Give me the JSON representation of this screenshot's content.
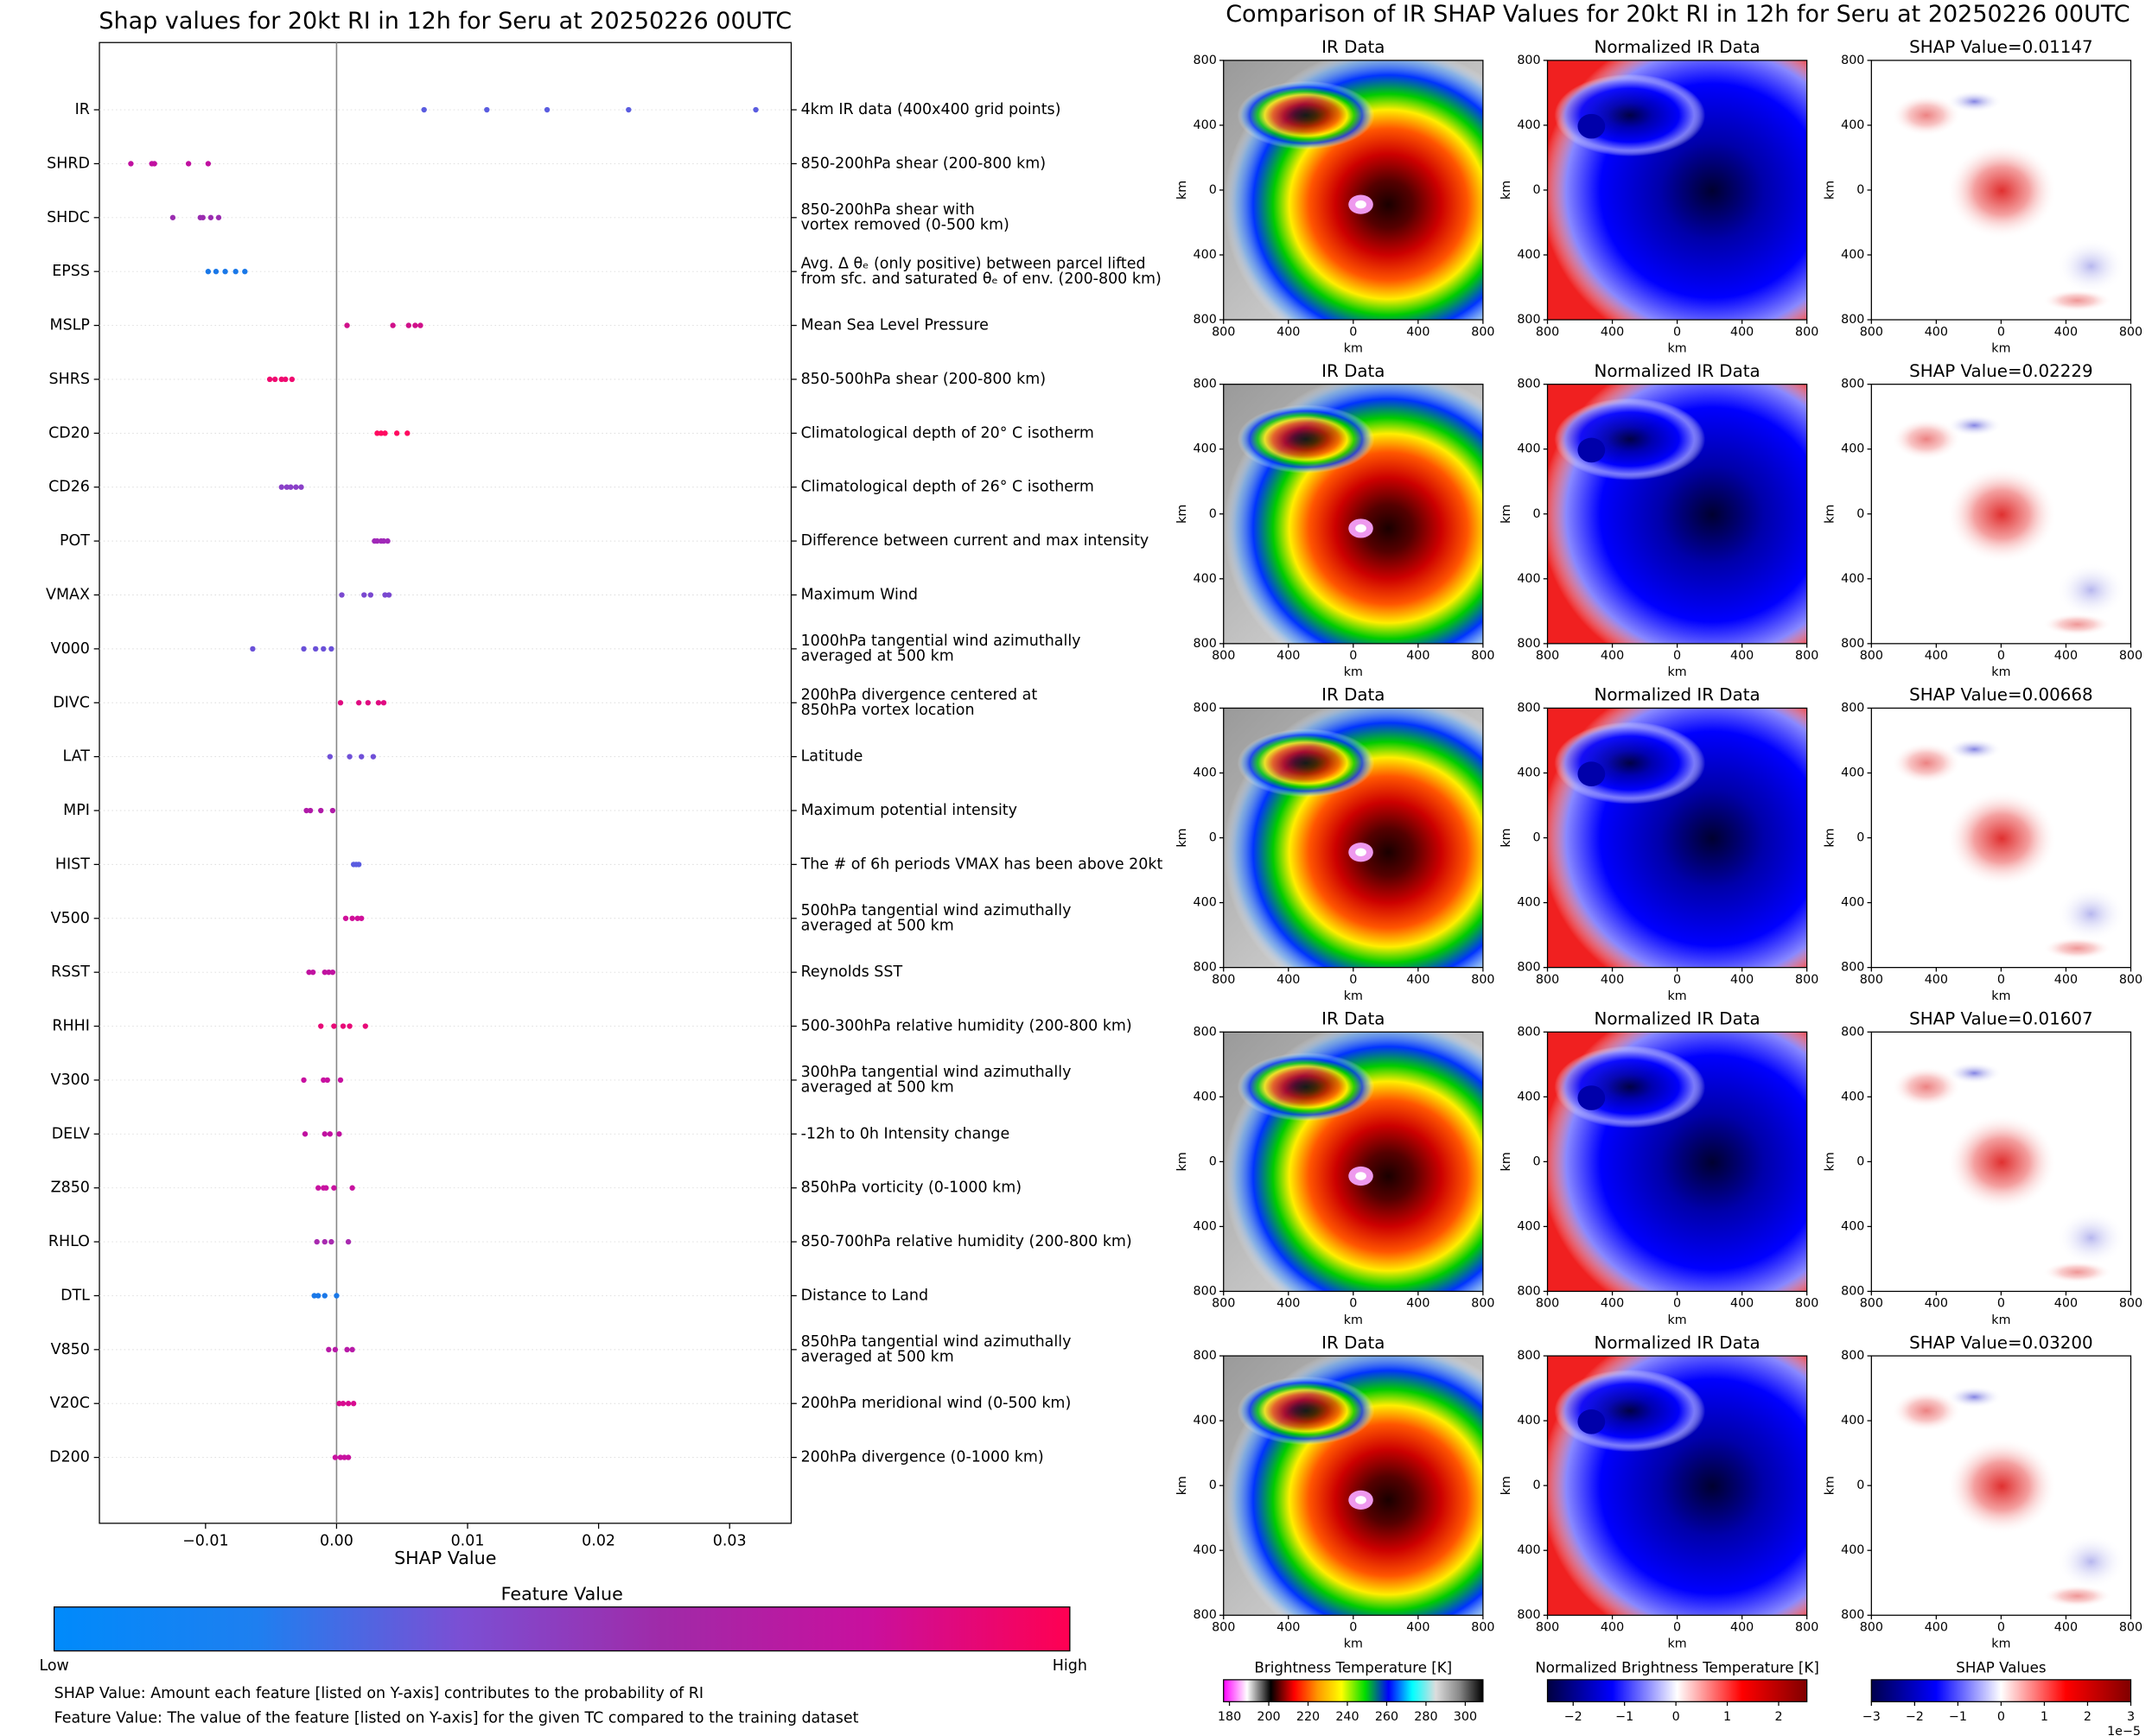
{
  "chart_data": [
    {
      "type": "scatter",
      "title": "Shap values for 20kt RI in 12h for Seru at 20250226 00UTC",
      "x_label": "SHAP Value",
      "xlim": [
        -0.0181,
        0.0347
      ],
      "xticks": [
        {
          "value": -0.01,
          "label": "−0.01"
        },
        {
          "value": 0,
          "label": "0.00"
        },
        0.01,
        0.02,
        0.03
      ],
      "series": [
        {
          "name": "IR",
          "description": [
            "4km IR data (400x400 grid points)"
          ],
          "color": "#5a5ce0",
          "values": [
            0.00668,
            0.01147,
            0.01607,
            0.02229,
            0.032
          ]
        },
        {
          "name": "SHRD",
          "description": [
            "850-200hPa shear (200-800 km)"
          ],
          "color": "#c010a0",
          "values": [
            -0.0157,
            -0.0141,
            -0.0139,
            -0.0113,
            -0.0098
          ]
        },
        {
          "name": "SHDC",
          "description": [
            "850-200hPa shear with",
            "vortex removed (0-500 km)"
          ],
          "color": "#9a2cb0",
          "values": [
            -0.0125,
            -0.0104,
            -0.0102,
            -0.0096,
            -0.009
          ]
        },
        {
          "name": "EPSS",
          "description": [
            "Avg. Δ θₑ (only positive) between parcel lifted",
            "from sfc. and saturated θₑ of env. (200-800 km)"
          ],
          "color": "#1a78e8",
          "values": [
            -0.0098,
            -0.0092,
            -0.0085,
            -0.0077,
            -0.007
          ]
        },
        {
          "name": "MSLP",
          "description": [
            "Mean Sea Level Pressure"
          ],
          "color": "#d0108a",
          "values": [
            0.0008,
            0.0043,
            0.0055,
            0.006,
            0.0064
          ]
        },
        {
          "name": "SHRS",
          "description": [
            "850-500hPa shear (200-800 km)"
          ],
          "color": "#f00a70",
          "values": [
            -0.0051,
            -0.0047,
            -0.0042,
            -0.0039,
            -0.0034
          ]
        },
        {
          "name": "CD20",
          "description": [
            "Climatological depth of 20° C isotherm"
          ],
          "color": "#ff0a60",
          "values": [
            0.0031,
            0.0034,
            0.0037,
            0.0046,
            0.0054
          ]
        },
        {
          "name": "CD26",
          "description": [
            "Climatological depth of 26° C isotherm"
          ],
          "color": "#8a40c8",
          "values": [
            -0.0042,
            -0.0038,
            -0.0035,
            -0.0031,
            -0.0027
          ]
        },
        {
          "name": "POT",
          "description": [
            "Difference between current and max intensity"
          ],
          "color": "#a028b8",
          "values": [
            0.0029,
            0.0031,
            0.0034,
            0.0036,
            0.0039
          ]
        },
        {
          "name": "VMAX",
          "description": [
            "Maximum Wind"
          ],
          "color": "#7a48d0",
          "values": [
            0.0004,
            0.0021,
            0.0026,
            0.0037,
            0.004
          ]
        },
        {
          "name": "V000",
          "description": [
            "1000hPa tangential wind azimuthally",
            "averaged at 500 km"
          ],
          "color": "#6a50d8",
          "values": [
            -0.0064,
            -0.0025,
            -0.0016,
            -0.001,
            -0.0004
          ]
        },
        {
          "name": "DIVC",
          "description": [
            "200hPa divergence centered at",
            "850hPa vortex location"
          ],
          "color": "#e00a80",
          "values": [
            0.0003,
            0.0017,
            0.0024,
            0.0032,
            0.0036
          ]
        },
        {
          "name": "LAT",
          "description": [
            "Latitude"
          ],
          "color": "#7050d8",
          "values": [
            -0.0005,
            0.001,
            0.0019,
            0.0028
          ]
        },
        {
          "name": "MPI",
          "description": [
            "Maximum potential intensity"
          ],
          "color": "#b01aa8",
          "values": [
            -0.0023,
            -0.002,
            -0.0012,
            -0.0003
          ]
        },
        {
          "name": "HIST",
          "description": [
            "The # of 6h periods VMAX has been above 20kt"
          ],
          "color": "#5a5ce0",
          "values": [
            0.0013,
            0.0015,
            0.0017
          ]
        },
        {
          "name": "V500",
          "description": [
            "500hPa tangential wind azimuthally",
            "averaged at 500 km"
          ],
          "color": "#d0109a",
          "values": [
            0.0007,
            0.0012,
            0.0016,
            0.0019
          ]
        },
        {
          "name": "RSST",
          "description": [
            "Reynolds SST"
          ],
          "color": "#c012a0",
          "values": [
            -0.0021,
            -0.0018,
            -0.0009,
            -0.0006,
            -0.0003
          ]
        },
        {
          "name": "RHHI",
          "description": [
            "500-300hPa relative humidity (200-800 km)"
          ],
          "color": "#e80a78",
          "values": [
            -0.0012,
            -0.0002,
            0.0005,
            0.001,
            0.0022
          ]
        },
        {
          "name": "V300",
          "description": [
            "300hPa tangential wind azimuthally",
            "averaged at 500 km"
          ],
          "color": "#c810a0",
          "values": [
            -0.0025,
            -0.001,
            -0.0007,
            0.0003
          ]
        },
        {
          "name": "DELV",
          "description": [
            "-12h to 0h Intensity change"
          ],
          "color": "#c010a0",
          "values": [
            -0.0024,
            -0.0009,
            -0.0005,
            0.0002
          ]
        },
        {
          "name": "Z850",
          "description": [
            "850hPa vorticity (0-1000 km)"
          ],
          "color": "#c812a0",
          "values": [
            -0.0014,
            -0.001,
            -0.0008,
            -0.0002,
            0.0012
          ]
        },
        {
          "name": "RHLO",
          "description": [
            "850-700hPa relative humidity (200-800 km)"
          ],
          "color": "#a82ab0",
          "values": [
            -0.0015,
            -0.0009,
            -0.0004,
            0.0009
          ]
        },
        {
          "name": "DTL",
          "description": [
            "Distance to Land"
          ],
          "color": "#1a78e8",
          "values": [
            -0.0017,
            -0.0014,
            -0.0009,
            0.0
          ]
        },
        {
          "name": "V850",
          "description": [
            "850hPa tangential wind azimuthally",
            "averaged at 500 km"
          ],
          "color": "#b81aa8",
          "values": [
            -0.0006,
            -0.0001,
            0.0008,
            0.0012
          ]
        },
        {
          "name": "V20C",
          "description": [
            "200hPa meridional wind (0-500 km)"
          ],
          "color": "#d80c90",
          "values": [
            0.0002,
            0.0005,
            0.0009,
            0.0013
          ]
        },
        {
          "name": "D200",
          "description": [
            "200hPa divergence (0-1000 km)"
          ],
          "color": "#c812a0",
          "values": [
            -0.0001,
            0.0003,
            0.0006,
            0.0009
          ]
        }
      ],
      "colorbar": {
        "label": "Feature Value",
        "low": "Low",
        "high": "High",
        "colors": [
          "#008afb",
          "#1e7ff0",
          "#7b4fd4",
          "#a02aa8",
          "#c8109e",
          "#ff0052"
        ]
      },
      "notes": [
        "SHAP Value: Amount each feature [listed on Y-axis] contributes to the probability of RI",
        "Feature Value: The value of the feature [listed on Y-axis] for the given TC compared to the training dataset"
      ]
    },
    {
      "type": "image_grid",
      "title": "Comparison of IR SHAP Values for 20kt RI in 12h for Seru at 20250226 00UTC",
      "columns": [
        "IR Data",
        "Normalized IR Data"
      ],
      "shap_titles": [
        "SHAP Value=0.01147",
        "SHAP Value=0.02229",
        "SHAP Value=0.00668",
        "SHAP Value=0.01607",
        "SHAP Value=0.03200"
      ],
      "x_label": "km",
      "y_label": "km",
      "xlim": [
        -800,
        800
      ],
      "ylim": [
        -800,
        800
      ],
      "xticks": [
        {
          "value": -800,
          "label": "800"
        },
        {
          "value": -400,
          "label": "400"
        },
        0,
        400,
        800
      ],
      "yticks": [
        {
          "value": -800,
          "label": "800"
        },
        {
          "value": -400,
          "label": "400"
        },
        0,
        400,
        800
      ],
      "colorbars": [
        {
          "label": "Brightness Temperature [K]",
          "lim": [
            177,
            309
          ],
          "ticks": [
            180,
            200,
            220,
            240,
            260,
            280,
            300
          ],
          "colors": [
            "#ff00ff",
            "#ffffff",
            "#000000",
            "#ff0000",
            "#ff9900",
            "#ffff00",
            "#00dd00",
            "#0000ff",
            "#00ffff",
            "#dddddd",
            "#888888",
            "#000000"
          ]
        },
        {
          "label": "Normalized Brightness Temperature [K]",
          "lim": [
            -2.5,
            2.55
          ],
          "ticks": [
            {
              "value": -2,
              "label": "−2"
            },
            {
              "value": -1,
              "label": "−1"
            },
            0,
            1,
            2
          ],
          "colors": [
            "#000040",
            "#0000ff",
            "#ffffff",
            "#ff0000",
            "#800000"
          ]
        },
        {
          "label": "SHAP Values",
          "lim": [
            -3,
            3
          ],
          "ticks": [
            {
              "value": -3,
              "label": "−3"
            },
            {
              "value": -2,
              "label": "−2"
            },
            {
              "value": -1,
              "label": "−1"
            },
            0,
            1,
            2,
            3
          ],
          "colors": [
            "#00004c",
            "#0000ff",
            "#ffffff",
            "#ff0000",
            "#800000"
          ],
          "offset_label": "1e−5"
        }
      ]
    }
  ]
}
